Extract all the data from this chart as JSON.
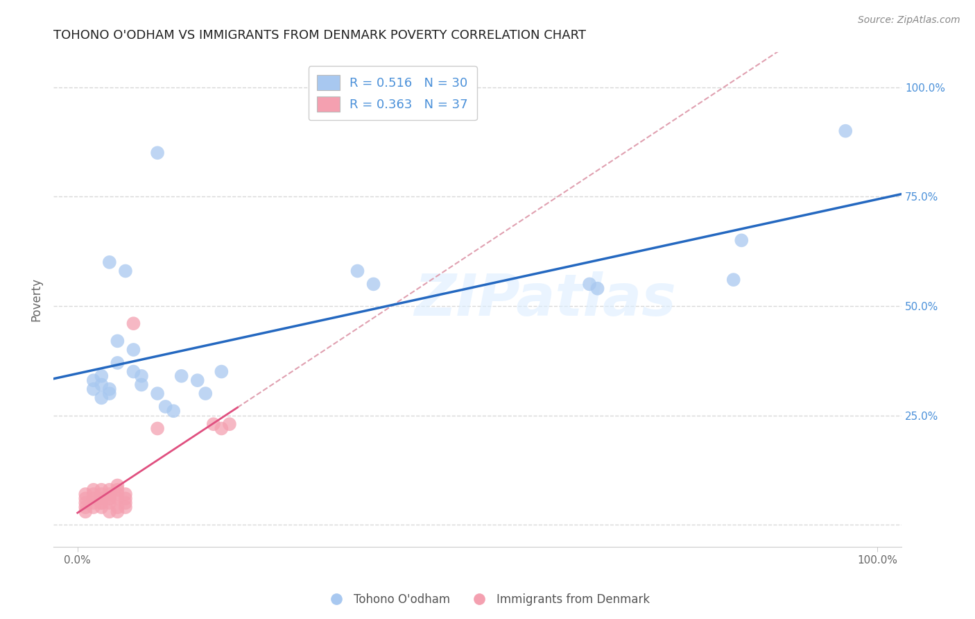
{
  "title": "TOHONO O'ODHAM VS IMMIGRANTS FROM DENMARK POVERTY CORRELATION CHART",
  "source": "Source: ZipAtlas.com",
  "ylabel": "Poverty",
  "watermark": "ZIPatlas",
  "blue_R": 0.516,
  "blue_N": 30,
  "pink_R": 0.363,
  "pink_N": 37,
  "blue_color": "#a8c8f0",
  "pink_color": "#f4a0b0",
  "blue_line_color": "#2468c0",
  "pink_line_color": "#e05080",
  "dashed_line_color": "#e0a0b0",
  "blue_scatter": [
    [
      0.01,
      0.85
    ],
    [
      0.004,
      0.6
    ],
    [
      0.035,
      0.58
    ],
    [
      0.037,
      0.55
    ],
    [
      0.006,
      0.58
    ],
    [
      0.005,
      0.42
    ],
    [
      0.007,
      0.4
    ],
    [
      0.005,
      0.37
    ],
    [
      0.007,
      0.35
    ],
    [
      0.008,
      0.34
    ],
    [
      0.008,
      0.32
    ],
    [
      0.01,
      0.3
    ],
    [
      0.011,
      0.27
    ],
    [
      0.012,
      0.26
    ],
    [
      0.013,
      0.34
    ],
    [
      0.015,
      0.33
    ],
    [
      0.016,
      0.3
    ],
    [
      0.018,
      0.35
    ],
    [
      0.002,
      0.33
    ],
    [
      0.003,
      0.32
    ],
    [
      0.003,
      0.34
    ],
    [
      0.002,
      0.31
    ],
    [
      0.003,
      0.29
    ],
    [
      0.004,
      0.31
    ],
    [
      0.004,
      0.3
    ],
    [
      0.064,
      0.55
    ],
    [
      0.065,
      0.54
    ],
    [
      0.082,
      0.56
    ],
    [
      0.083,
      0.65
    ],
    [
      0.096,
      0.9
    ]
  ],
  "pink_scatter": [
    [
      0.001,
      0.05
    ],
    [
      0.001,
      0.06
    ],
    [
      0.001,
      0.04
    ],
    [
      0.001,
      0.03
    ],
    [
      0.001,
      0.07
    ],
    [
      0.002,
      0.05
    ],
    [
      0.002,
      0.06
    ],
    [
      0.002,
      0.04
    ],
    [
      0.002,
      0.07
    ],
    [
      0.002,
      0.08
    ],
    [
      0.003,
      0.05
    ],
    [
      0.003,
      0.06
    ],
    [
      0.003,
      0.07
    ],
    [
      0.003,
      0.08
    ],
    [
      0.003,
      0.04
    ],
    [
      0.003,
      0.05
    ],
    [
      0.004,
      0.07
    ],
    [
      0.004,
      0.06
    ],
    [
      0.004,
      0.05
    ],
    [
      0.004,
      0.08
    ],
    [
      0.004,
      0.03
    ],
    [
      0.004,
      0.06
    ],
    [
      0.005,
      0.08
    ],
    [
      0.005,
      0.07
    ],
    [
      0.005,
      0.06
    ],
    [
      0.005,
      0.09
    ],
    [
      0.005,
      0.03
    ],
    [
      0.005,
      0.04
    ],
    [
      0.006,
      0.05
    ],
    [
      0.006,
      0.06
    ],
    [
      0.006,
      0.04
    ],
    [
      0.006,
      0.07
    ],
    [
      0.007,
      0.46
    ],
    [
      0.01,
      0.22
    ],
    [
      0.017,
      0.23
    ],
    [
      0.018,
      0.22
    ],
    [
      0.019,
      0.23
    ]
  ],
  "xlim": [
    -0.003,
    0.103
  ],
  "ylim": [
    -0.05,
    1.08
  ],
  "xticks": [
    0.0,
    0.1
  ],
  "xtick_labels": [
    "0.0%",
    "100.0%"
  ],
  "yticks": [
    0.0,
    0.25,
    0.5,
    0.75,
    1.0
  ],
  "right_ytick_labels": [
    "",
    "25.0%",
    "50.0%",
    "75.0%",
    "100.0%"
  ],
  "grid_color": "#d8d8d8",
  "background_color": "#ffffff",
  "title_fontsize": 13,
  "label_fontsize": 12,
  "tick_fontsize": 11,
  "legend_fontsize": 13
}
